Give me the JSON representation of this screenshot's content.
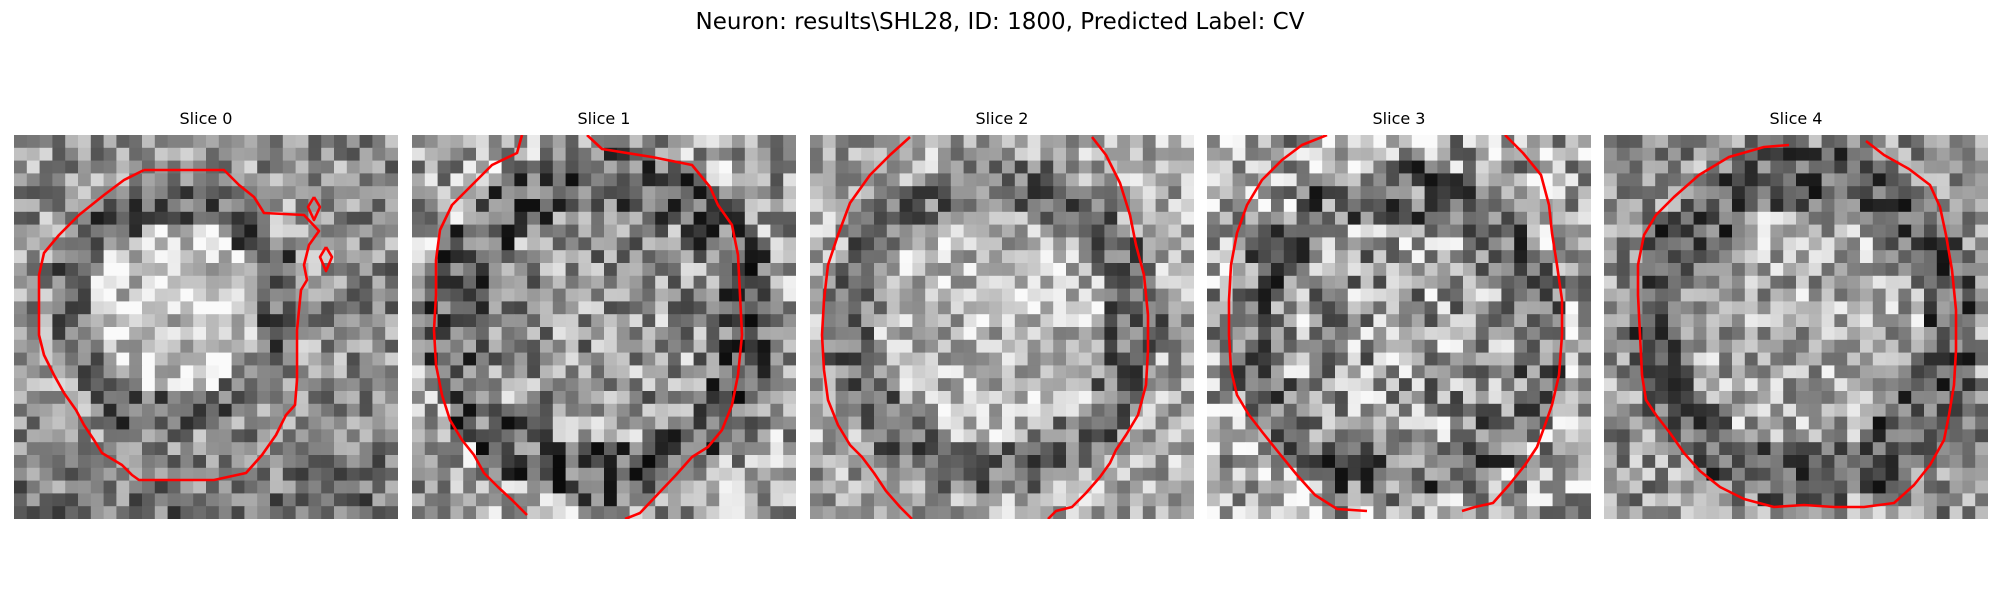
{
  "figure": {
    "title": "Neuron: results\\SHL28, ID: 1800, Predicted Label: CV"
  },
  "panels": [
    {
      "title": "Slice 0"
    },
    {
      "title": "Slice 1"
    },
    {
      "title": "Slice 2"
    },
    {
      "title": "Slice 3"
    },
    {
      "title": "Slice 4"
    }
  ],
  "colors": {
    "contour": "#ff0000",
    "background": "#ffffff"
  }
}
